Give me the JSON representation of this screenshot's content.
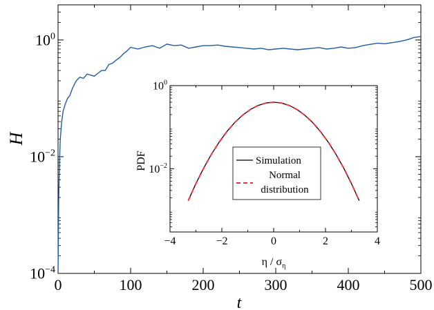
{
  "chart_data": [
    {
      "type": "line",
      "panel": "main",
      "xlabel": "t",
      "ylabel": "H",
      "xlim": [
        0,
        500
      ],
      "ylim": [
        0.0001,
        4
      ],
      "yscale": "log",
      "xticks": [
        0,
        100,
        200,
        300,
        400,
        500
      ],
      "xtick_labels": [
        "0",
        "100",
        "200",
        "300",
        "400",
        "500"
      ],
      "yticks": [
        0.0001,
        0.01,
        1
      ],
      "ytick_labels": [
        {
          "base": "10",
          "exp": "−4"
        },
        {
          "base": "10",
          "exp": "−2"
        },
        {
          "base": "10",
          "exp": "0"
        }
      ],
      "grid": false,
      "series": [
        {
          "color": "#1f5aa6",
          "x": [
            0,
            1,
            2,
            3,
            5,
            7,
            10,
            13,
            16,
            20,
            25,
            30,
            35,
            40,
            45,
            50,
            55,
            60,
            65,
            70,
            75,
            80,
            85,
            90,
            95,
            100,
            110,
            120,
            130,
            140,
            150,
            160,
            170,
            180,
            190,
            200,
            210,
            220,
            230,
            240,
            250,
            260,
            270,
            280,
            290,
            300,
            310,
            320,
            330,
            340,
            350,
            360,
            370,
            380,
            390,
            400,
            410,
            420,
            430,
            440,
            450,
            460,
            470,
            480,
            490,
            500
          ],
          "y": [
            0.0001,
            0.002,
            0.008,
            0.02,
            0.04,
            0.06,
            0.08,
            0.1,
            0.11,
            0.15,
            0.2,
            0.23,
            0.22,
            0.26,
            0.25,
            0.24,
            0.27,
            0.3,
            0.3,
            0.38,
            0.4,
            0.45,
            0.5,
            0.58,
            0.65,
            0.75,
            0.7,
            0.76,
            0.8,
            0.72,
            0.85,
            0.8,
            0.82,
            0.72,
            0.76,
            0.8,
            0.8,
            0.82,
            0.78,
            0.76,
            0.74,
            0.72,
            0.7,
            0.72,
            0.68,
            0.7,
            0.72,
            0.7,
            0.68,
            0.7,
            0.72,
            0.74,
            0.7,
            0.72,
            0.76,
            0.72,
            0.74,
            0.8,
            0.84,
            0.88,
            0.86,
            0.9,
            0.94,
            1.0,
            1.1,
            1.15
          ]
        }
      ]
    },
    {
      "type": "line",
      "panel": "inset",
      "xlabel": "η / σ",
      "xlabel_sub": "η",
      "ylabel": "PDF",
      "xlim": [
        -4,
        4
      ],
      "ylim": [
        0.0003,
        1
      ],
      "yscale": "log",
      "xticks": [
        -4,
        -2,
        0,
        2,
        4
      ],
      "xtick_labels": [
        "−4",
        "−2",
        "0",
        "2",
        "4"
      ],
      "yticks": [
        0.01,
        1
      ],
      "ytick_labels": [
        {
          "base": "10",
          "exp": "−2"
        },
        {
          "base": "10",
          "exp": "0"
        }
      ],
      "legend_position": "center",
      "grid": false,
      "series": [
        {
          "name": "Simulation",
          "color": "#000000",
          "style": "solid",
          "x": [
            -3.3,
            -3.0,
            -2.7,
            -2.4,
            -2.1,
            -1.8,
            -1.5,
            -1.2,
            -0.9,
            -0.6,
            -0.3,
            0.0,
            0.3,
            0.6,
            0.9,
            1.2,
            1.5,
            1.8,
            2.1,
            2.4,
            2.7,
            3.0,
            3.3
          ],
          "y": [
            0.0017,
            0.0044,
            0.0104,
            0.0224,
            0.044,
            0.079,
            0.13,
            0.194,
            0.266,
            0.333,
            0.381,
            0.399,
            0.381,
            0.333,
            0.266,
            0.194,
            0.13,
            0.079,
            0.044,
            0.0224,
            0.0104,
            0.0044,
            0.0017
          ]
        },
        {
          "name": "Normal distribution",
          "name_lines": [
            "Normal",
            "distribution"
          ],
          "color": "#e8323c",
          "style": "dashed",
          "x": [
            -3.3,
            -3.0,
            -2.7,
            -2.4,
            -2.1,
            -1.8,
            -1.5,
            -1.2,
            -0.9,
            -0.6,
            -0.3,
            0.0,
            0.3,
            0.6,
            0.9,
            1.2,
            1.5,
            1.8,
            2.1,
            2.4,
            2.7,
            3.0,
            3.3
          ],
          "y": [
            0.0017,
            0.0044,
            0.0104,
            0.0224,
            0.044,
            0.079,
            0.13,
            0.194,
            0.266,
            0.333,
            0.381,
            0.399,
            0.381,
            0.333,
            0.266,
            0.194,
            0.13,
            0.079,
            0.044,
            0.0224,
            0.0104,
            0.0044,
            0.0017
          ]
        }
      ]
    }
  ]
}
